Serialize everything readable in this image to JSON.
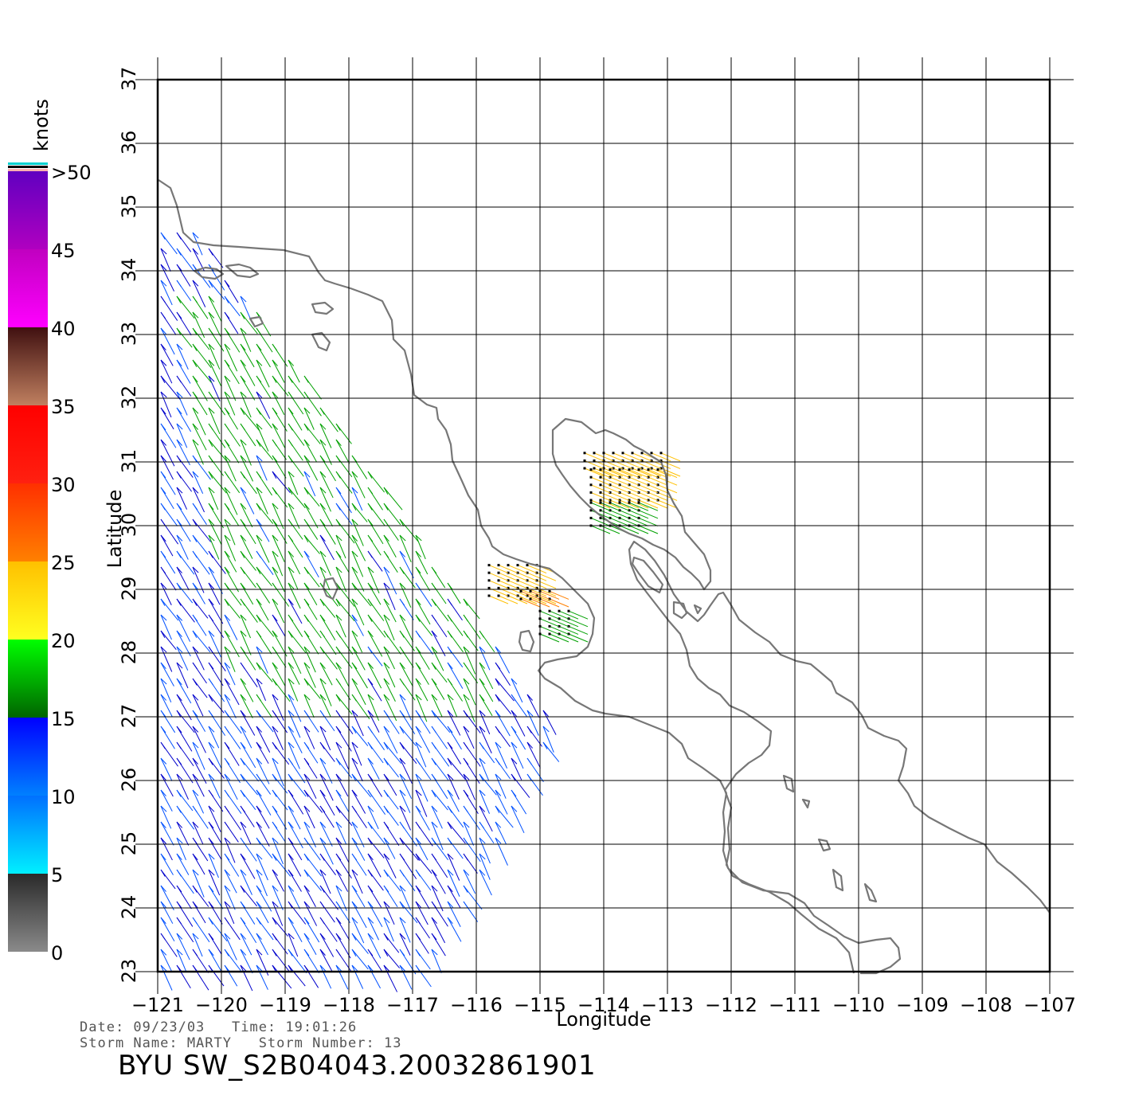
{
  "chart_data": {
    "type": "wind-vector-map",
    "xlabel": "Longitude",
    "ylabel": "Latitude",
    "xlim": [
      -121,
      -107
    ],
    "ylim": [
      23,
      37
    ],
    "x_ticks": [
      -121,
      -120,
      -119,
      -118,
      -117,
      -116,
      -115,
      -114,
      -113,
      -112,
      -111,
      -110,
      -109,
      -108,
      -107
    ],
    "y_ticks": [
      23,
      24,
      25,
      26,
      27,
      28,
      29,
      30,
      31,
      32,
      33,
      34,
      35,
      36,
      37
    ],
    "x_tick_labels": [
      "−121",
      "−120",
      "−119",
      "−118",
      "−117",
      "−116",
      "−115",
      "−114",
      "−113",
      "−112",
      "−111",
      "−110",
      "−109",
      "−108",
      "−107"
    ],
    "y_tick_labels": [
      "23",
      "24",
      "25",
      "26",
      "27",
      "28",
      "29",
      "30",
      "31",
      "32",
      "33",
      "34",
      "35",
      "36",
      "37"
    ],
    "grid": true,
    "colorbar": {
      "unit": "knots",
      "labels": [
        "0",
        "5",
        "10",
        "15",
        "20",
        "25",
        "30",
        "35",
        "40",
        "45",
        ">50"
      ],
      "bins": [
        {
          "range": [
            0,
            5
          ],
          "colors": [
            "#8a8a8a",
            "#2a2a2a"
          ]
        },
        {
          "range": [
            5,
            10
          ],
          "colors": [
            "#00f0ff",
            "#0070ff"
          ]
        },
        {
          "range": [
            10,
            15
          ],
          "colors": [
            "#0080ff",
            "#0000ff"
          ]
        },
        {
          "range": [
            15,
            20
          ],
          "colors": [
            "#006400",
            "#00ff00"
          ]
        },
        {
          "range": [
            20,
            25
          ],
          "colors": [
            "#ffff20",
            "#ffc000"
          ]
        },
        {
          "range": [
            25,
            30
          ],
          "colors": [
            "#ff8000",
            "#ff3000"
          ]
        },
        {
          "range": [
            30,
            35
          ],
          "colors": [
            "#ff2010",
            "#ff0000"
          ]
        },
        {
          "range": [
            35,
            40
          ],
          "colors": [
            "#c08060",
            "#401010"
          ]
        },
        {
          "range": [
            40,
            45
          ],
          "colors": [
            "#ff00ff",
            "#c000c0"
          ]
        },
        {
          "range": [
            45,
            50
          ],
          "colors": [
            "#b000c0",
            "#6000c0"
          ]
        }
      ],
      "cap_colors": [
        "#ffb0b0",
        "#000000",
        "#00d0d0"
      ]
    },
    "coastline_color": "#777777",
    "wind_color_scale": [
      "#0050ff",
      "#0000cc",
      "#00a000",
      "#ffc000",
      "#ff8000",
      "#ff2000"
    ]
  },
  "footer": {
    "line1": "Date: 09/23/03   Time: 19:01:26",
    "line2": "Storm Name: MARTY   Storm Number: 13",
    "title": "BYU SW_S2B04043.20032861901"
  }
}
